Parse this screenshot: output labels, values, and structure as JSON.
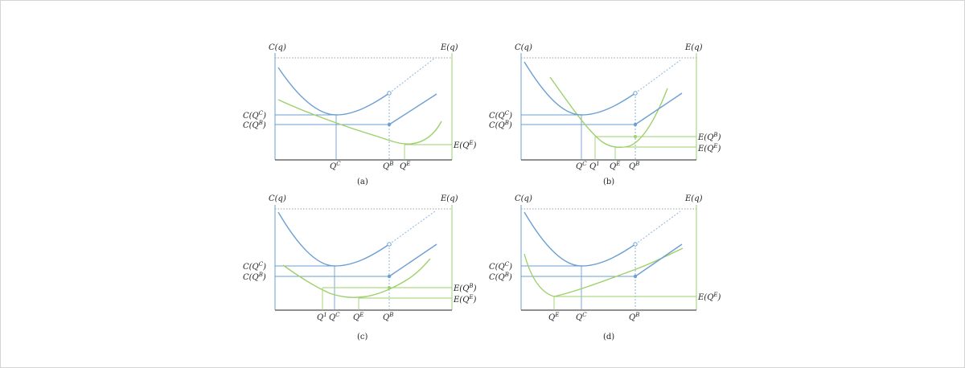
{
  "panels": {
    "a": {
      "caption": "(a)",
      "left_axis_label": "C(q)",
      "right_axis_label": "E(q)",
      "left_ticks": [
        "C(Q^C)",
        "C(Q^B)"
      ],
      "right_ticks": [
        "E(Q^E)"
      ],
      "x_ticks": [
        "Q^C",
        "Q^B",
        "Q^E"
      ]
    },
    "b": {
      "caption": "(b)",
      "left_axis_label": "C(q)",
      "right_axis_label": "E(q)",
      "left_ticks": [
        "C(Q^C)",
        "C(Q^B)"
      ],
      "right_ticks": [
        "E(Q^B)",
        "E(Q^E)"
      ],
      "x_ticks": [
        "Q^C",
        "Q^1",
        "Q^E",
        "Q^B"
      ]
    },
    "c": {
      "caption": "(c)",
      "left_axis_label": "C(q)",
      "right_axis_label": "E(q)",
      "left_ticks": [
        "C(Q^C)",
        "C(Q^B)"
      ],
      "right_ticks": [
        "E(Q^B)",
        "E(Q^E)"
      ],
      "x_ticks": [
        "Q^1",
        "Q^C",
        "Q^E",
        "Q^B"
      ]
    },
    "d": {
      "caption": "(d)",
      "left_axis_label": "C(q)",
      "right_axis_label": "E(q)",
      "left_ticks": [
        "C(Q^C)",
        "C(Q^B)"
      ],
      "right_ticks": [
        "E(Q^E)"
      ],
      "x_ticks": [
        "Q^E",
        "Q^C",
        "Q^B"
      ]
    }
  },
  "colors": {
    "cost_curve": "#6c9fd2",
    "emission_curve": "#9ed06b",
    "axis": "#4d4d4d"
  }
}
